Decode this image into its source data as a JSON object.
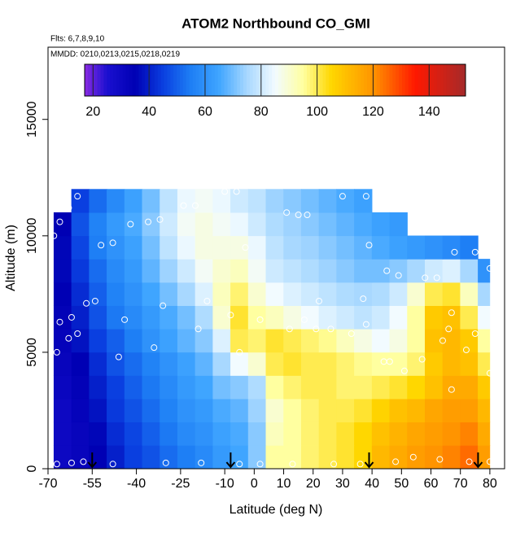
{
  "chart_data": {
    "type": "heatmap",
    "title": "ATOM2 Northbound CO_GMI",
    "subtitle": "Flts: 6,7,8,9,10",
    "annotation": "MMDD: 0210,0213,0215,0218,0219",
    "xlabel": "Latitude (deg N)",
    "ylabel": "Altitude (m)",
    "xlim": [
      -70,
      85
    ],
    "ylim": [
      0,
      18100
    ],
    "xticks": [
      -70,
      -55,
      -40,
      -25,
      -10,
      0,
      10,
      20,
      30,
      40,
      50,
      60,
      70,
      80
    ],
    "yticks": [
      0,
      5000,
      10000,
      15000
    ],
    "clim": [
      17,
      153
    ],
    "cticks": [
      20,
      40,
      60,
      80,
      100,
      120,
      140
    ],
    "colorscale": [
      [
        17,
        "#8a2be2"
      ],
      [
        25,
        "#1a10d0"
      ],
      [
        35,
        "#0000b4"
      ],
      [
        45,
        "#0a3fe0"
      ],
      [
        55,
        "#1e7ff5"
      ],
      [
        65,
        "#3fa5ff"
      ],
      [
        75,
        "#a8d8ff"
      ],
      [
        85,
        "#f2fbff"
      ],
      [
        95,
        "#ffffa0"
      ],
      [
        105,
        "#ffd700"
      ],
      [
        120,
        "#ff9400"
      ],
      [
        135,
        "#ff1800"
      ],
      [
        153,
        "#a52a2a"
      ]
    ],
    "x_edges": [
      -68,
      -62,
      -56,
      -50,
      -44,
      -38,
      -32,
      -26,
      -20,
      -14,
      -8,
      -2,
      4,
      10,
      16,
      22,
      28,
      34,
      40,
      46,
      52,
      58,
      64,
      70,
      76,
      80
    ],
    "y_edges": [
      0,
      1000,
      2000,
      3000,
      4000,
      5000,
      6000,
      7000,
      8000,
      9000,
      10000,
      11000,
      12000
    ],
    "z": [
      [
        30,
        32,
        35,
        40,
        45,
        48,
        52,
        55,
        58,
        62,
        65,
        72,
        95,
        95,
        98,
        100,
        102,
        105,
        112,
        115,
        118,
        120,
        122,
        125,
        118
      ],
      [
        30,
        32,
        36,
        42,
        46,
        50,
        54,
        58,
        60,
        64,
        66,
        72,
        92,
        95,
        98,
        100,
        102,
        105,
        110,
        113,
        116,
        118,
        120,
        122,
        115
      ],
      [
        30,
        33,
        38,
        44,
        48,
        52,
        56,
        60,
        62,
        66,
        68,
        74,
        90,
        95,
        98,
        100,
        100,
        102,
        106,
        110,
        112,
        116,
        118,
        118,
        112
      ],
      [
        31,
        34,
        40,
        45,
        50,
        54,
        58,
        62,
        65,
        70,
        72,
        76,
        95,
        98,
        100,
        100,
        98,
        98,
        100,
        102,
        105,
        110,
        115,
        115,
        108
      ],
      [
        32,
        35,
        42,
        48,
        52,
        56,
        60,
        64,
        68,
        75,
        85,
        90,
        100,
        102,
        100,
        100,
        98,
        96,
        95,
        95,
        98,
        108,
        112,
        110,
        100
      ],
      [
        33,
        38,
        45,
        50,
        55,
        60,
        64,
        68,
        72,
        82,
        100,
        98,
        102,
        100,
        98,
        96,
        92,
        88,
        85,
        88,
        95,
        110,
        112,
        108,
        95
      ],
      [
        34,
        40,
        48,
        54,
        58,
        62,
        66,
        70,
        76,
        90,
        102,
        95,
        92,
        88,
        85,
        82,
        80,
        78,
        80,
        85,
        95,
        108,
        110,
        100,
        85
      ],
      [
        35,
        42,
        50,
        56,
        60,
        65,
        70,
        75,
        82,
        92,
        98,
        90,
        85,
        82,
        80,
        78,
        76,
        75,
        76,
        80,
        90,
        100,
        102,
        92,
        75
      ],
      [
        36,
        44,
        52,
        58,
        62,
        68,
        74,
        80,
        86,
        90,
        92,
        86,
        80,
        78,
        76,
        74,
        72,
        70,
        70,
        72,
        75,
        80,
        82,
        75,
        60
      ],
      [
        36,
        46,
        55,
        60,
        64,
        70,
        78,
        84,
        88,
        88,
        88,
        84,
        78,
        75,
        74,
        72,
        70,
        68,
        66,
        64,
        62,
        60,
        58,
        55,
        null
      ],
      [
        35,
        48,
        56,
        62,
        66,
        72,
        80,
        86,
        88,
        86,
        84,
        80,
        76,
        74,
        72,
        70,
        68,
        66,
        64,
        62,
        null,
        null,
        null,
        null,
        null
      ],
      [
        null,
        45,
        52,
        58,
        64,
        70,
        78,
        84,
        86,
        84,
        80,
        78,
        74,
        72,
        70,
        68,
        66,
        64,
        null,
        null,
        null,
        null,
        null,
        null,
        null
      ]
    ],
    "points_x": [
      -67,
      -62,
      -58,
      -48,
      -30,
      -18,
      -5,
      2,
      13,
      27,
      36,
      48,
      54,
      63,
      73,
      80,
      -67,
      -66,
      -63,
      -62,
      -60,
      -57,
      -54,
      -46,
      -44,
      -34,
      -31,
      -19,
      -16,
      -8,
      -5,
      -68,
      -66,
      -63,
      -60,
      -52,
      -48,
      -42,
      -36,
      -32,
      -24,
      -20,
      -10,
      -6,
      -3,
      2,
      12,
      17,
      21,
      26,
      33,
      38,
      39,
      45,
      49,
      58,
      62,
      68,
      75,
      80,
      46,
      51,
      57,
      64,
      67,
      66,
      72,
      75,
      80,
      30,
      38,
      18,
      15,
      11,
      37,
      22,
      44,
      67
    ],
    "points_y": [
      200,
      250,
      300,
      200,
      250,
      250,
      200,
      200,
      200,
      200,
      200,
      300,
      500,
      400,
      300,
      300,
      5000,
      6300,
      5600,
      6500,
      5800,
      7100,
      7200,
      4800,
      6400,
      5200,
      7000,
      6000,
      7200,
      6600,
      5000,
      10000,
      10600,
      11200,
      11700,
      9600,
      9700,
      10500,
      10600,
      10700,
      11300,
      11300,
      11900,
      11900,
      9500,
      6400,
      6000,
      6400,
      6000,
      6000,
      5800,
      6200,
      9600,
      8500,
      8300,
      8200,
      8200,
      9300,
      9300,
      8600,
      4600,
      4200,
      4700,
      5500,
      6700,
      6000,
      5100,
      5800,
      4100,
      11700,
      11700,
      10900,
      10900,
      11000,
      7300,
      7200,
      4600,
      3400
    ],
    "arrows_x": [
      -55,
      -8,
      39,
      76
    ]
  }
}
